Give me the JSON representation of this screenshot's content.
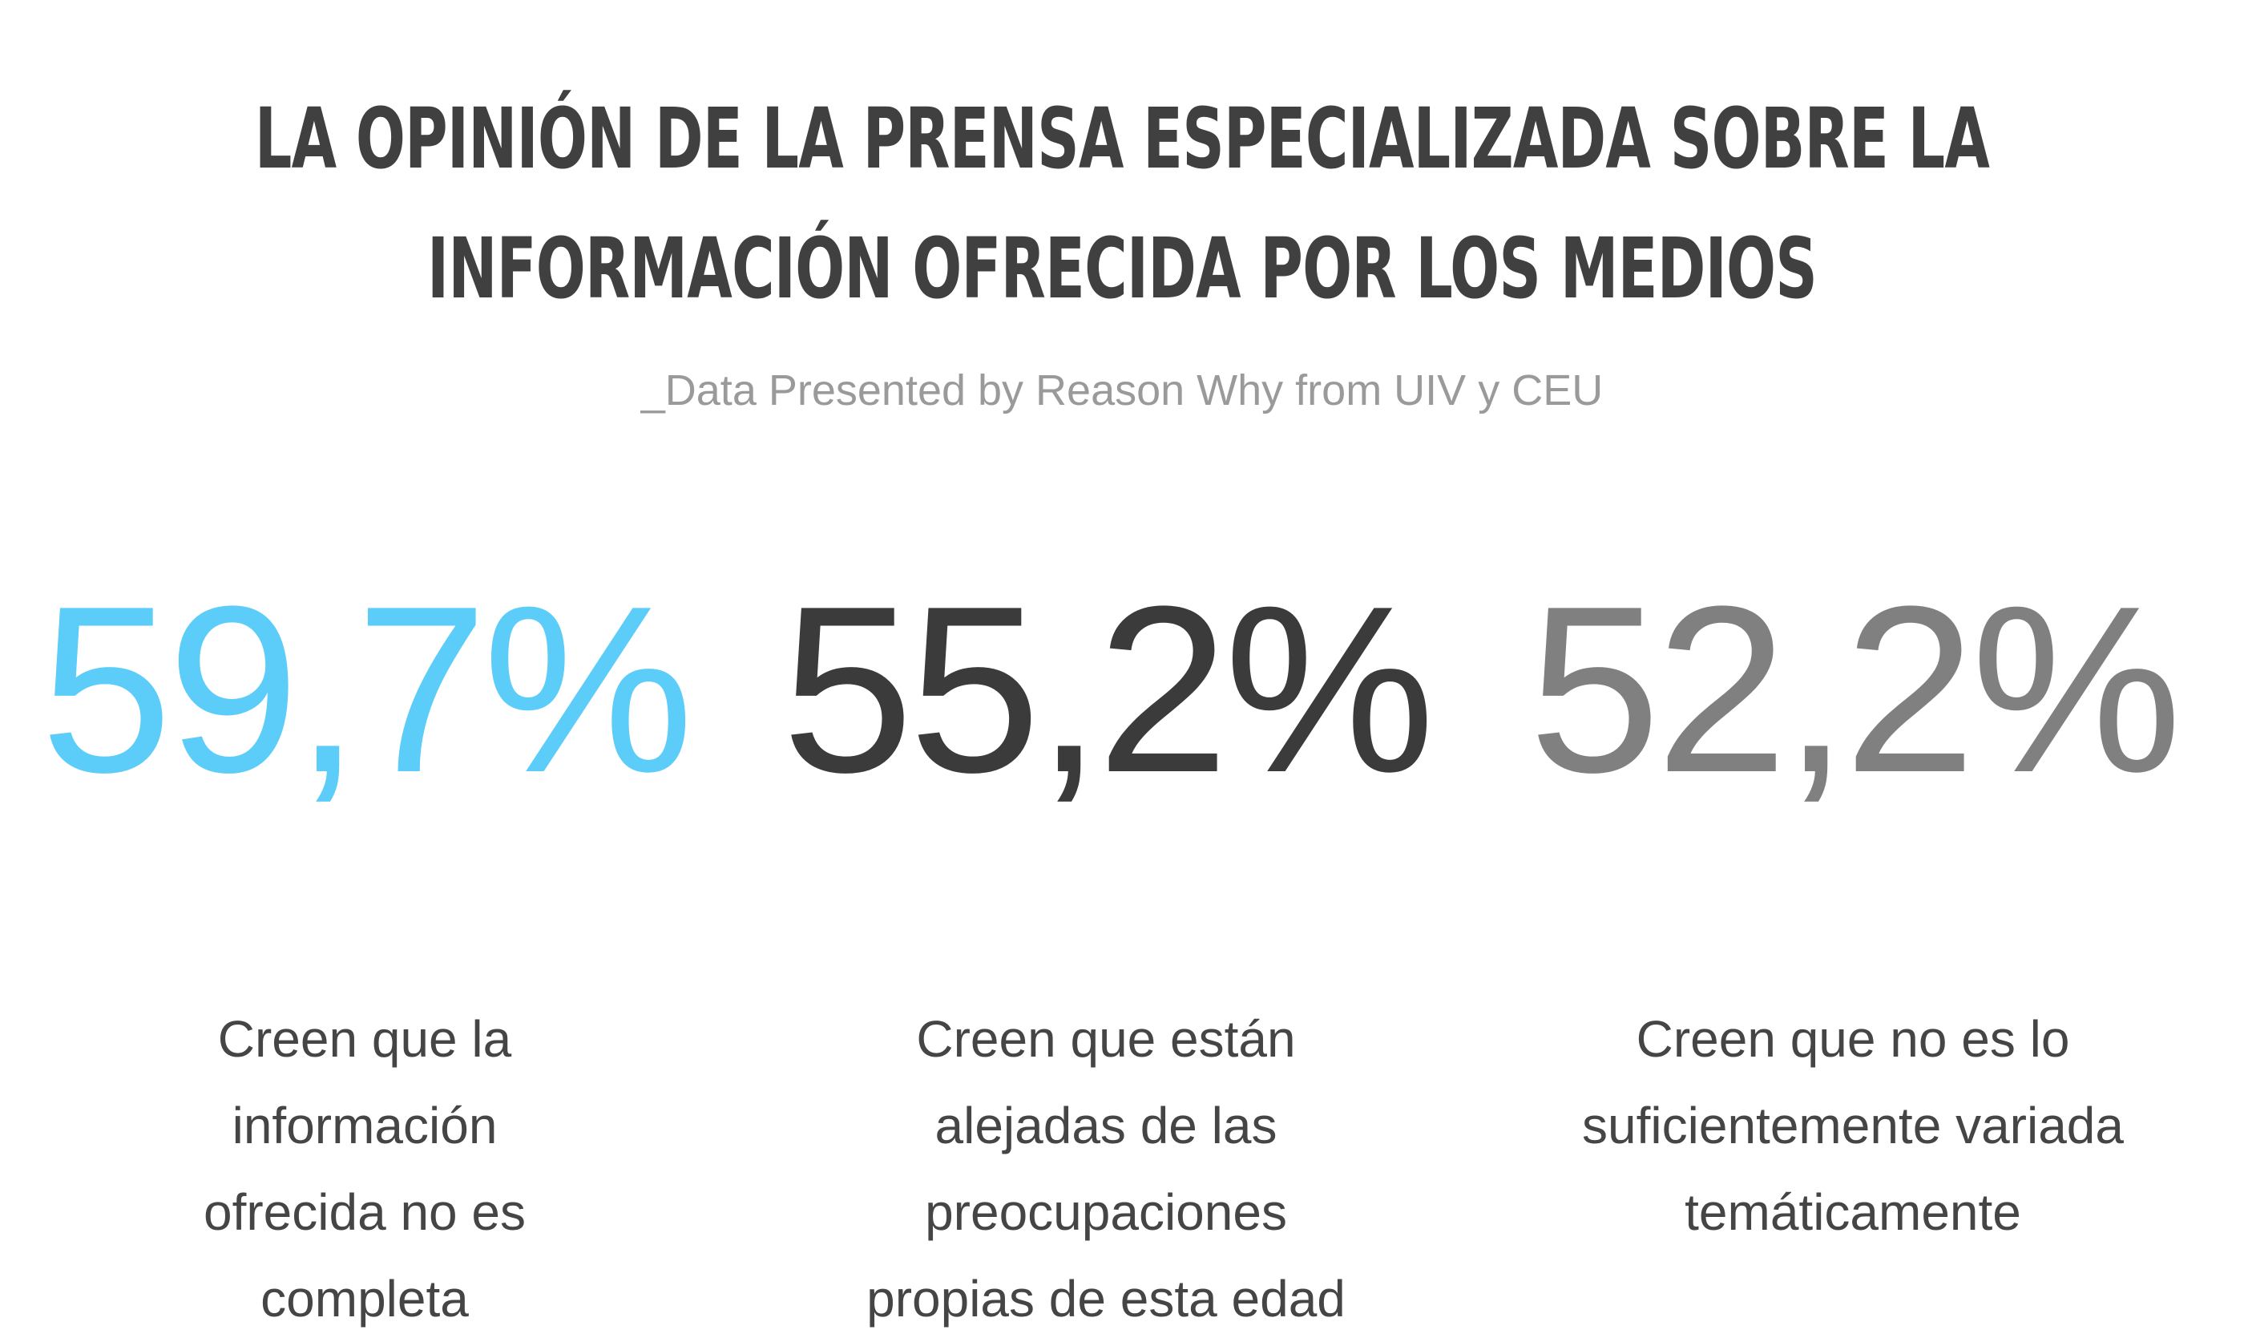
{
  "title": {
    "line1": "LA OPINIÓN DE LA PRENSA ESPECIALIZADA SOBRE LA",
    "line2": "INFORMACIÓN OFRECIDA POR LOS MEDIOS"
  },
  "subtitle": "_Data Presented by Reason Why from UIV y CEU",
  "stats": [
    {
      "value": "59,7%",
      "color": "#5ccdf9",
      "description": "Creen que la información ofrecida no es completa"
    },
    {
      "value": "55,2%",
      "color": "#3b3b3b",
      "description": "Creen que están alejadas de las preocupaciones propias de esta edad"
    },
    {
      "value": "52,2%",
      "color": "#808080",
      "description": "Creen que no es lo suficientemente variada temáticamente"
    }
  ]
}
